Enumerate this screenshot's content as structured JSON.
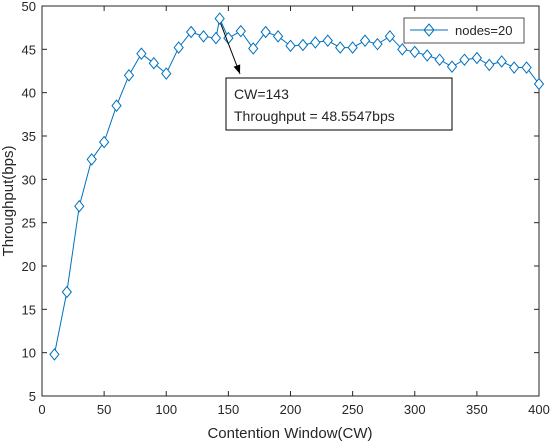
{
  "chart_data": {
    "type": "line",
    "title": "",
    "xlabel": "Contention Window(CW)",
    "ylabel": "Throughput(bps)",
    "xlim": [
      0,
      400
    ],
    "ylim": [
      5,
      50
    ],
    "xticks": [
      0,
      50,
      100,
      150,
      200,
      250,
      300,
      350,
      400
    ],
    "yticks": [
      5,
      10,
      15,
      20,
      25,
      30,
      35,
      40,
      45,
      50
    ],
    "grid": false,
    "legend_position": "top-right",
    "series": [
      {
        "name": "nodes=20",
        "color": "#0072BD",
        "marker": "diamond",
        "x": [
          10,
          20,
          30,
          40,
          50,
          60,
          70,
          80,
          90,
          100,
          110,
          120,
          130,
          140,
          143,
          150,
          160,
          170,
          180,
          190,
          200,
          210,
          220,
          230,
          240,
          250,
          260,
          270,
          280,
          290,
          300,
          310,
          320,
          330,
          340,
          350,
          360,
          370,
          380,
          390,
          400
        ],
        "y": [
          9.8,
          17.0,
          26.9,
          32.3,
          34.3,
          38.5,
          42.0,
          44.5,
          43.4,
          42.2,
          45.2,
          47.0,
          46.5,
          46.3,
          48.55,
          46.3,
          47.1,
          45.1,
          47.0,
          46.5,
          45.4,
          45.5,
          45.8,
          46.0,
          45.2,
          45.2,
          46.0,
          45.6,
          46.5,
          45.0,
          44.7,
          44.3,
          43.8,
          43.0,
          43.8,
          44.0,
          43.2,
          43.6,
          42.9,
          42.9,
          41.0
        ]
      }
    ],
    "annotation": {
      "line1": "CW=143",
      "line2": "Throughput = 48.5547bps",
      "target_x": 143,
      "target_y": 48.5547
    }
  }
}
